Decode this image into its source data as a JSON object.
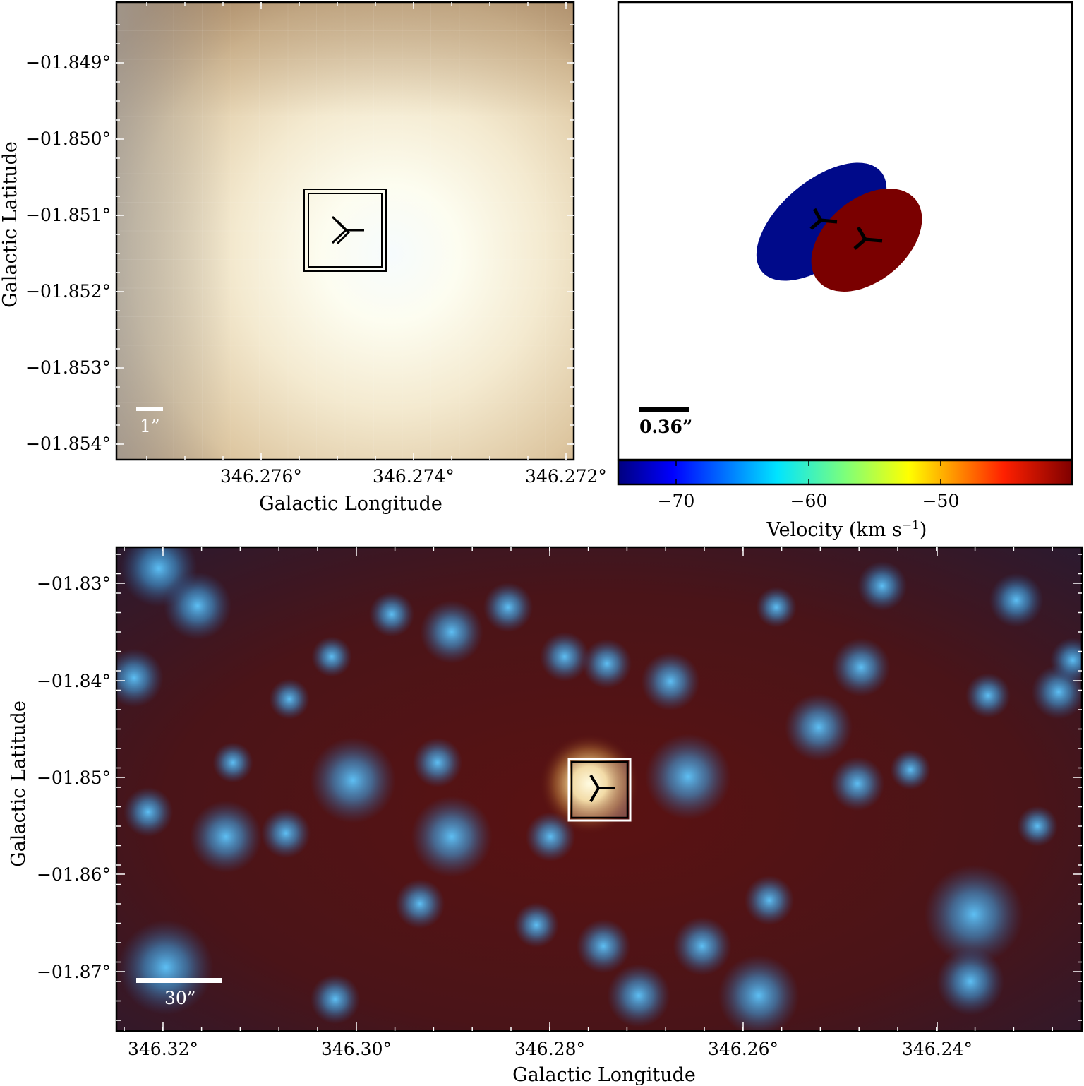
{
  "panels": {
    "top_left": {
      "xlabel": "Galactic Longitude",
      "ylabel": "Galactic Latitude",
      "xticks": [
        "346.276°",
        "346.274°",
        "346.272°"
      ],
      "yticks": [
        "−01.849°",
        "−01.850°",
        "−01.851°",
        "−01.852°",
        "−01.853°",
        "−01.854°"
      ],
      "scale_label": "1”"
    },
    "top_right": {
      "scale_label": "0.36”",
      "colorbar": {
        "label": "Velocity (km s",
        "label_sup": "−1",
        "label_end": ")",
        "ticks": [
          "−70",
          "−60",
          "−50"
        ]
      },
      "blob_colors": {
        "blue": "#000a8a",
        "red": "#7a0000"
      }
    },
    "bottom": {
      "xlabel": "Galactic Longitude",
      "ylabel": "Galactic Latitude",
      "xticks": [
        "346.32°",
        "346.30°",
        "346.28°",
        "346.26°",
        "346.24°"
      ],
      "yticks": [
        "−01.83°",
        "−01.84°",
        "−01.85°",
        "−01.86°",
        "−01.87°"
      ],
      "scale_label": "30”"
    }
  }
}
